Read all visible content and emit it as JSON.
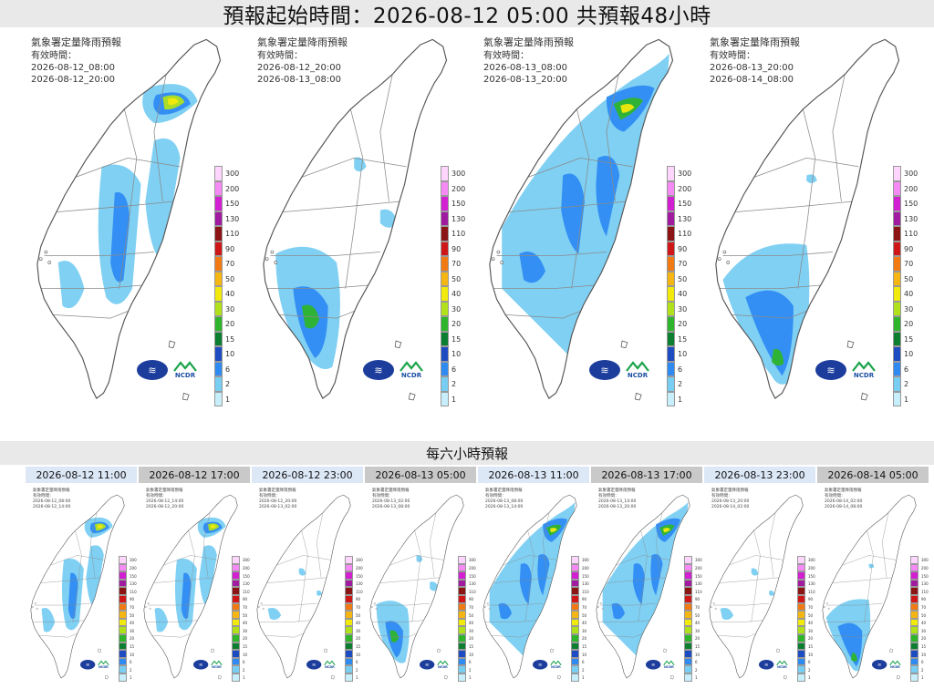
{
  "header": {
    "title": "預報起始時間：2026-08-12 05:00  共預報48小時"
  },
  "big_panels": [
    {
      "title": "氣象署定量降雨預報",
      "valid_label": "有效時間：",
      "start": "2026-08-12_08:00",
      "end": "2026-08-12_20:00",
      "rain": "north-heavy"
    },
    {
      "title": "氣象署定量降雨預報",
      "valid_label": "有效時間：",
      "start": "2026-08-12_20:00",
      "end": "2026-08-13_08:00",
      "rain": "south-west"
    },
    {
      "title": "氣象署定量降雨預報",
      "valid_label": "有效時間：",
      "start": "2026-08-13_08:00",
      "end": "2026-08-13_20:00",
      "rain": "widespread"
    },
    {
      "title": "氣象署定量降雨預報",
      "valid_label": "有效時間：",
      "start": "2026-08-13_20:00",
      "end": "2026-08-14_08:00",
      "rain": "south"
    }
  ],
  "colorbar": {
    "levels": [
      "300",
      "200",
      "150",
      "130",
      "110",
      "90",
      "70",
      "50",
      "40",
      "30",
      "20",
      "15",
      "10",
      "6",
      "2",
      "1"
    ],
    "colors": [
      "#fdd5fd",
      "#f58af5",
      "#d21fd2",
      "#a01ba0",
      "#8b1414",
      "#cf1717",
      "#f27a12",
      "#f5b614",
      "#f2e90d",
      "#b0e11b",
      "#2fb52c",
      "#0c7e2f",
      "#1d4cc2",
      "#2f8bf2",
      "#78cdf2",
      "#c7effb"
    ]
  },
  "logos": {
    "agency": "CWA",
    "ncdr": "NCDR"
  },
  "mid": {
    "title": "每六小時預報"
  },
  "small_panels": [
    {
      "time": "2026-08-12 11:00",
      "style": "light",
      "start": "2026-08-12_08:00",
      "end": "2026-08-12_14:00",
      "rain": "north-heavy"
    },
    {
      "time": "2026-08-12 17:00",
      "style": "gray",
      "start": "2026-08-12_14:00",
      "end": "2026-08-12_20:00",
      "rain": "north-heavy"
    },
    {
      "time": "2026-08-12 23:00",
      "style": "light",
      "start": "2026-08-12_20:00",
      "end": "2026-08-13_02:00",
      "rain": "sparse"
    },
    {
      "time": "2026-08-13 05:00",
      "style": "gray",
      "start": "2026-08-13_02:00",
      "end": "2026-08-13_08:00",
      "rain": "south-west"
    },
    {
      "time": "2026-08-13 11:00",
      "style": "light",
      "start": "2026-08-13_08:00",
      "end": "2026-08-13_14:00",
      "rain": "widespread"
    },
    {
      "time": "2026-08-13 17:00",
      "style": "gray",
      "start": "2026-08-13_14:00",
      "end": "2026-08-13_20:00",
      "rain": "widespread"
    },
    {
      "time": "2026-08-13 23:00",
      "style": "light",
      "start": "2026-08-13_20:00",
      "end": "2026-08-14_02:00",
      "rain": "sparse"
    },
    {
      "time": "2026-08-14 05:00",
      "style": "gray",
      "start": "2026-08-14_02:00",
      "end": "2026-08-14_08:00",
      "rain": "south"
    }
  ]
}
